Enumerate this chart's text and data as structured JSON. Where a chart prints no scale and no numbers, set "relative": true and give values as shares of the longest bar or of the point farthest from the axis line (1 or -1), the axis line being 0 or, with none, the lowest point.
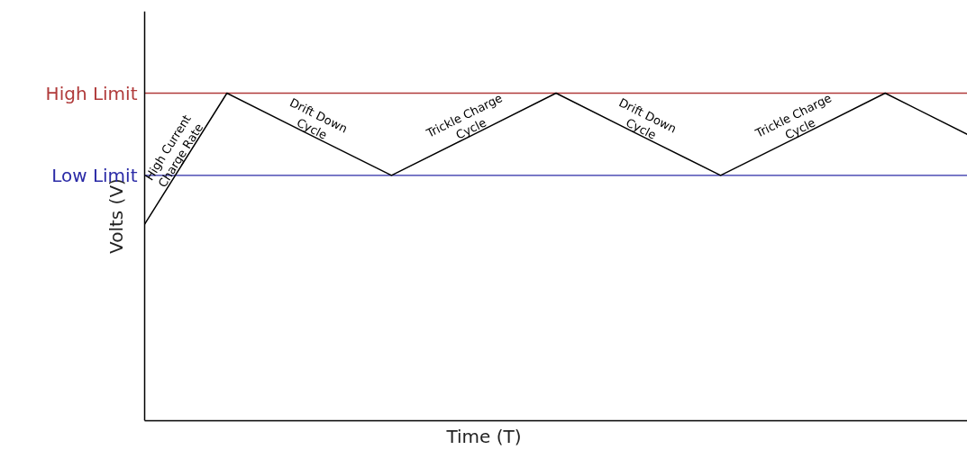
{
  "chart_data": {
    "type": "line",
    "relative": true,
    "xlabel": "Time (T)",
    "ylabel": "Volts (V)",
    "categories": [
      null,
      null,
      null,
      null,
      null,
      null,
      null,
      null,
      null,
      null,
      null
    ],
    "series": [
      {
        "color": "#000000",
        "values": [
          0.6,
          1,
          0.874,
          0.749,
          0.874,
          1,
          0.874,
          0.749,
          0.874,
          1,
          0.874
        ]
      }
    ],
    "ref_lines": [
      {
        "axis": "y",
        "value": 1,
        "label": "High Limit",
        "color": "#b03a3a"
      },
      {
        "axis": "y",
        "value": 0.749,
        "label": "Low Limit",
        "color": "#2a2aa6"
      }
    ],
    "annotations": [
      "High Current\nCharge Rate",
      "Drift Down\nCycle",
      "Trickle Charge\nCycle",
      "Drift Down\nCycle",
      "Trickle Charge\nCycle"
    ],
    "marker": "none",
    "line_style": "solid",
    "grid": false,
    "legend": false,
    "tick_labels": false
  }
}
